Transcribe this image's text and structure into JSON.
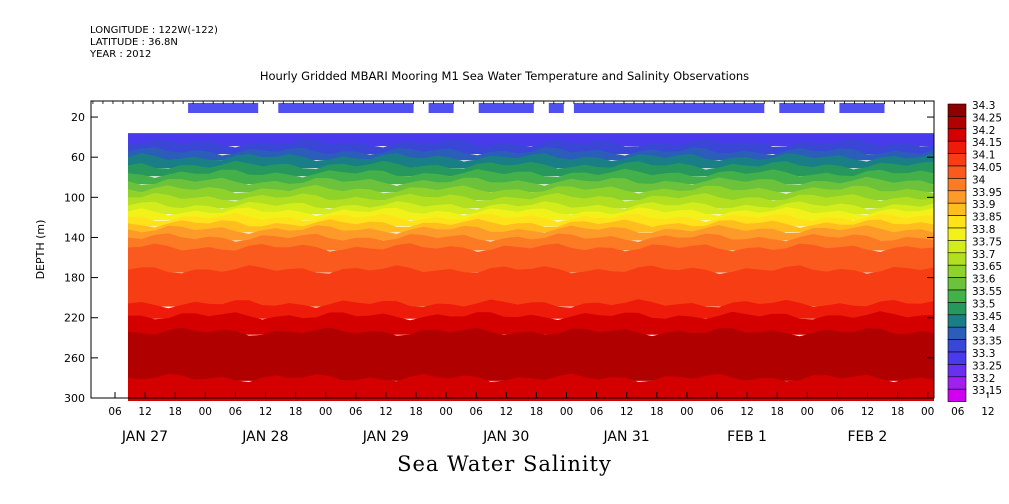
{
  "header": {
    "longitude": "LONGITUDE : 122W(-122)",
    "latitude": "LATITUDE : 36.8N",
    "year": "YEAR : 2012"
  },
  "chart_data": {
    "type": "heatmap",
    "title": "Hourly Gridded MBARI Mooring M1 Sea Water Temperature and Salinity Observations",
    "xlabel": "Sea Water Salinity",
    "ylabel": "DEPTH (m)",
    "y_ticks": [
      20,
      60,
      100,
      140,
      180,
      220,
      260,
      300
    ],
    "ylim": [
      300,
      4
    ],
    "x_hour_ticks": [
      "06",
      "12",
      "18",
      "00",
      "06",
      "12",
      "18",
      "00",
      "06",
      "12",
      "18",
      "00",
      "06",
      "12",
      "18",
      "00",
      "06",
      "12",
      "18",
      "00",
      "06",
      "12",
      "18",
      "00",
      "06",
      "12",
      "18",
      "00",
      "06",
      "12",
      "18"
    ],
    "x_day_labels": [
      "JAN 27",
      "JAN 28",
      "JAN 29",
      "JAN 30",
      "JAN 31",
      "FEB 1",
      "FEB 2"
    ],
    "data_start_depth": 36,
    "availability_bars_hours": [
      [
        12,
        26
      ],
      [
        30,
        57
      ],
      [
        60,
        65
      ],
      [
        70,
        81
      ],
      [
        84,
        87
      ],
      [
        89,
        127
      ],
      [
        130,
        139
      ],
      [
        142,
        151
      ],
      [
        200,
        201
      ],
      [
        211,
        220
      ]
    ],
    "colorbar": {
      "levels": [
        "34.3",
        "34.25",
        "34.2",
        "34.15",
        "34.1",
        "34.05",
        "34",
        "33.95",
        "33.9",
        "33.85",
        "33.8",
        "33.75",
        "33.7",
        "33.65",
        "33.6",
        "33.55",
        "33.5",
        "33.45",
        "33.4",
        "33.35",
        "33.3",
        "33.25",
        "33.2",
        "33.15"
      ],
      "colors": [
        "#8c0000",
        "#b00000",
        "#d40000",
        "#ee1a0a",
        "#f63d14",
        "#fa5a1e",
        "#fc7a24",
        "#fd9a2a",
        "#ffbe1e",
        "#ffe21a",
        "#f2f21a",
        "#d2ec1c",
        "#b2e020",
        "#8ed22a",
        "#6cc23a",
        "#44b04a",
        "#26985e",
        "#1a7e86",
        "#2a5eb8",
        "#3a46d6",
        "#4a3aee",
        "#6a30f0",
        "#a020f0",
        "#d000f0"
      ]
    },
    "depth_bands": [
      {
        "salinity": "33.3",
        "from": 36,
        "to": 46
      },
      {
        "salinity": "33.35",
        "from": 46,
        "to": 54
      },
      {
        "salinity": "33.4",
        "from": 54,
        "to": 60
      },
      {
        "salinity": "33.45",
        "from": 60,
        "to": 68
      },
      {
        "salinity": "33.5",
        "from": 68,
        "to": 76
      },
      {
        "salinity": "33.55",
        "from": 76,
        "to": 84
      },
      {
        "salinity": "33.6",
        "from": 84,
        "to": 92
      },
      {
        "salinity": "33.65",
        "from": 92,
        "to": 100
      },
      {
        "salinity": "33.7",
        "from": 100,
        "to": 108
      },
      {
        "salinity": "33.75",
        "from": 108,
        "to": 114
      },
      {
        "salinity": "33.8",
        "from": 114,
        "to": 120
      },
      {
        "salinity": "33.85",
        "from": 120,
        "to": 126
      },
      {
        "salinity": "33.9",
        "from": 126,
        "to": 132
      },
      {
        "salinity": "33.95",
        "from": 132,
        "to": 140
      },
      {
        "salinity": "34",
        "from": 140,
        "to": 150
      },
      {
        "salinity": "34.05",
        "from": 150,
        "to": 172
      },
      {
        "salinity": "34.1",
        "from": 172,
        "to": 206
      },
      {
        "salinity": "34.15",
        "from": 206,
        "to": 218
      },
      {
        "salinity": "34.2",
        "from": 218,
        "to": 234
      },
      {
        "salinity": "34.25",
        "from": 234,
        "to": 280
      },
      {
        "salinity": "34.2",
        "from": 280,
        "to": 300
      }
    ]
  }
}
